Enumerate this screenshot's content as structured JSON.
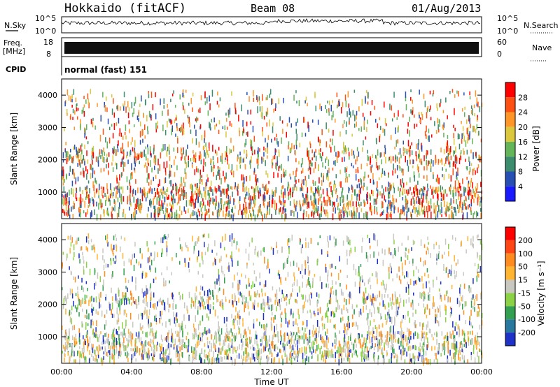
{
  "header": {
    "site": "Hokkaido (fitACF)",
    "beam": "Beam 08",
    "date": "01/Aug/2013"
  },
  "status_panels": {
    "nsky_label": "N.Sky",
    "nsearch_label": "N.Search",
    "freq_label": "Freq.",
    "freq_unit": "[MHz]",
    "nave_label": "Nave",
    "cpid_label": "CPID",
    "cpid_value": "normal (fast) 151",
    "noise_ticks": [
      "10^5",
      "10^0"
    ],
    "freq_ticks": [
      "18",
      "8"
    ],
    "nave_ticks": [
      "60",
      "0"
    ]
  },
  "chart_data": [
    {
      "type": "heatmap",
      "title": "",
      "xlabel": "Time UT",
      "ylabel": "Slant Range [km]",
      "x_ticks": [
        "00:00",
        "04:00",
        "08:00",
        "12:00",
        "16:00",
        "20:00",
        "00:00"
      ],
      "y_ticks": [
        "1000",
        "2000",
        "3000",
        "4000"
      ],
      "xlim": [
        0,
        24
      ],
      "ylim": [
        180,
        4500
      ],
      "colorbar": {
        "label": "Power [dB]",
        "ticks": [
          "4",
          "8",
          "12",
          "16",
          "20",
          "24",
          "28"
        ],
        "colors": [
          "#1a1aff",
          "#2850b4",
          "#3c8c6e",
          "#64b45a",
          "#dcc83c",
          "#ff9628",
          "#ff5014",
          "#ff0000"
        ]
      }
    },
    {
      "type": "heatmap",
      "title": "",
      "xlabel": "Time UT",
      "ylabel": "Slant Range [km]",
      "x_ticks": [
        "00:00",
        "04:00",
        "08:00",
        "12:00",
        "16:00",
        "20:00",
        "00:00"
      ],
      "y_ticks": [
        "1000",
        "2000",
        "3000",
        "4000"
      ],
      "xlim": [
        0,
        24
      ],
      "ylim": [
        180,
        4500
      ],
      "colorbar": {
        "label": "Velocity [m s⁻¹]",
        "ticks": [
          "200",
          "100",
          "50",
          "15",
          "-15",
          "-50",
          "-100",
          "-200"
        ],
        "colors": [
          "#1e32c8",
          "#2878a0",
          "#32a050",
          "#8cd246",
          "#c8c8c0",
          "#ffb432",
          "#ff8c1e",
          "#ff4614",
          "#ff0000"
        ]
      }
    }
  ]
}
